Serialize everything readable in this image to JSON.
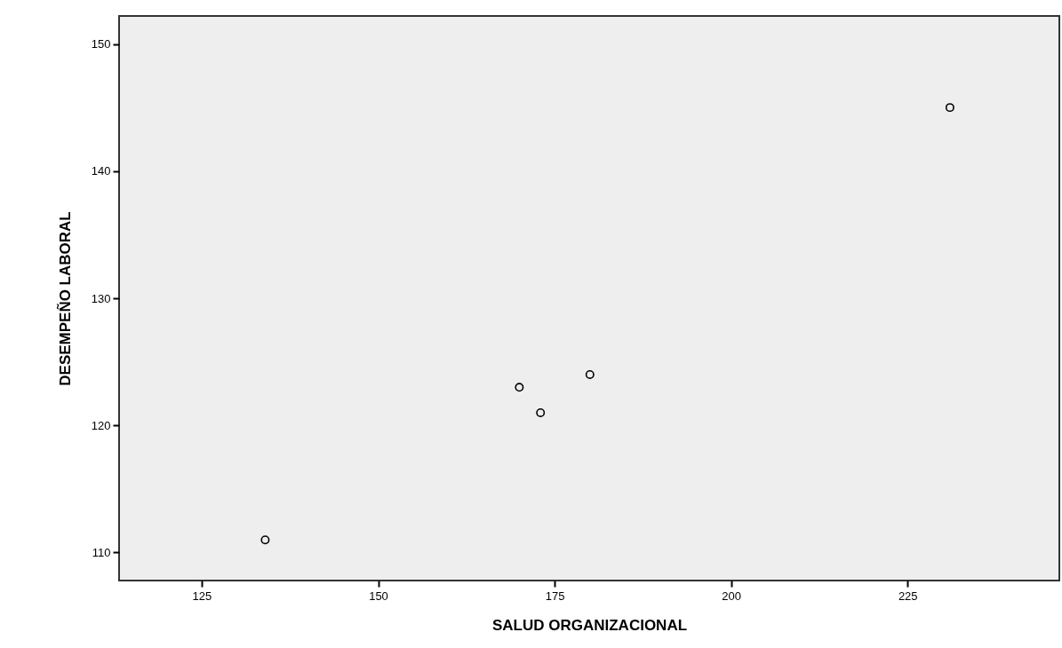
{
  "chart_data": {
    "type": "scatter",
    "xlabel": "SALUD ORGANIZACIONAL",
    "ylabel": "DESEMPEÑO LABORAL",
    "x": [
      134,
      170,
      173,
      180,
      231
    ],
    "values": [
      111,
      123,
      121,
      124,
      145
    ],
    "color": "#000000",
    "marker": "circle",
    "xlim": [
      113.3,
      246.5
    ],
    "xticks": [
      125,
      150,
      175,
      200,
      225
    ],
    "ylim": [
      107.8,
      152.2
    ],
    "yticks": [
      110,
      120,
      130,
      140,
      150
    ],
    "grid": false
  }
}
